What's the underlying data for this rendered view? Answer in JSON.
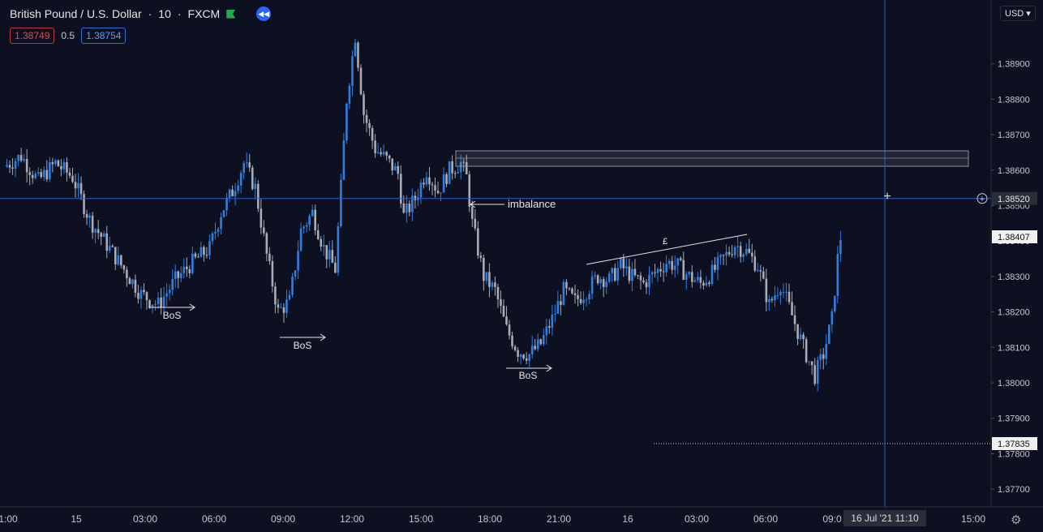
{
  "header": {
    "symbol": "British Pound / U.S. Dollar",
    "interval": "10",
    "source": "FXCM",
    "bid": "1.38749",
    "spread": "0.5",
    "ask": "1.38754",
    "currency_selector": "USD"
  },
  "colors": {
    "background": "#0d1020",
    "up": "#2f7fe0",
    "down": "#a9acb5",
    "crosshair": "#2e5fc9",
    "annotation": "#e6e6e6"
  },
  "chart_data": {
    "type": "candlestick",
    "ylim": [
      1.3765,
      1.3908
    ],
    "y_ticks": [
      1.377,
      1.378,
      1.379,
      1.38,
      1.381,
      1.382,
      1.383,
      1.384,
      1.385,
      1.386,
      1.387,
      1.388,
      1.389
    ],
    "y_tick_labels": [
      "1.37700",
      "1.37800",
      "1.37900",
      "1.38000",
      "1.38100",
      "1.38200",
      "1.38300",
      "1.38400",
      "1.38500",
      "1.38600",
      "1.38700",
      "1.38800",
      "1.38900"
    ],
    "x_tick_labels": [
      "1:00",
      "15",
      "03:00",
      "06:00",
      "09:00",
      "12:00",
      "15:00",
      "18:00",
      "21:00",
      "16",
      "03:00",
      "06:00",
      "09:0",
      "15:00"
    ],
    "crosshair_price": "1.38520",
    "crosshair_time": "16 Jul '21   11:10",
    "last_price_label": "1.38407",
    "level_label": "1.37835",
    "annotations": [
      "imbalance",
      "BoS",
      "BoS",
      "BoS",
      "£"
    ],
    "price_path": [
      [
        0,
        1.3861
      ],
      [
        6,
        1.3864
      ],
      [
        12,
        1.3857
      ],
      [
        18,
        1.3862
      ],
      [
        24,
        1.3858
      ],
      [
        30,
        1.3846
      ],
      [
        36,
        1.3839
      ],
      [
        42,
        1.3832
      ],
      [
        48,
        1.3825
      ],
      [
        54,
        1.3822
      ],
      [
        60,
        1.3829
      ],
      [
        66,
        1.3834
      ],
      [
        72,
        1.3838
      ],
      [
        76,
        1.3848
      ],
      [
        80,
        1.3854
      ],
      [
        84,
        1.3862
      ],
      [
        88,
        1.3855
      ],
      [
        92,
        1.3836
      ],
      [
        96,
        1.382
      ],
      [
        100,
        1.3823
      ],
      [
        104,
        1.3843
      ],
      [
        108,
        1.3848
      ],
      [
        112,
        1.3838
      ],
      [
        116,
        1.3832
      ],
      [
        118,
        1.3855
      ],
      [
        120,
        1.388
      ],
      [
        123,
        1.3898
      ],
      [
        126,
        1.3876
      ],
      [
        130,
        1.3866
      ],
      [
        134,
        1.3863
      ],
      [
        138,
        1.3859
      ],
      [
        140,
        1.3847
      ],
      [
        144,
        1.3852
      ],
      [
        148,
        1.386
      ],
      [
        152,
        1.3854
      ],
      [
        156,
        1.386
      ],
      [
        160,
        1.3862
      ],
      [
        162,
        1.3858
      ],
      [
        164,
        1.3845
      ],
      [
        168,
        1.383
      ],
      [
        172,
        1.3826
      ],
      [
        176,
        1.3815
      ],
      [
        180,
        1.3809
      ],
      [
        184,
        1.3808
      ],
      [
        188,
        1.3811
      ],
      [
        192,
        1.3818
      ],
      [
        196,
        1.3826
      ],
      [
        200,
        1.3823
      ],
      [
        204,
        1.3826
      ],
      [
        208,
        1.383
      ],
      [
        212,
        1.3829
      ],
      [
        216,
        1.3833
      ],
      [
        220,
        1.383
      ],
      [
        224,
        1.3828
      ],
      [
        228,
        1.3831
      ],
      [
        232,
        1.3834
      ],
      [
        236,
        1.3833
      ],
      [
        240,
        1.383
      ],
      [
        244,
        1.3828
      ],
      [
        248,
        1.3831
      ],
      [
        252,
        1.3835
      ],
      [
        256,
        1.3839
      ],
      [
        260,
        1.3837
      ],
      [
        264,
        1.3833
      ],
      [
        268,
        1.3822
      ],
      [
        272,
        1.3828
      ],
      [
        276,
        1.3819
      ],
      [
        280,
        1.381
      ],
      [
        284,
        1.3802
      ],
      [
        287,
        1.3808
      ],
      [
        290,
        1.3818
      ],
      [
        292,
        1.3835
      ],
      [
        293,
        1.3841
      ]
    ]
  }
}
